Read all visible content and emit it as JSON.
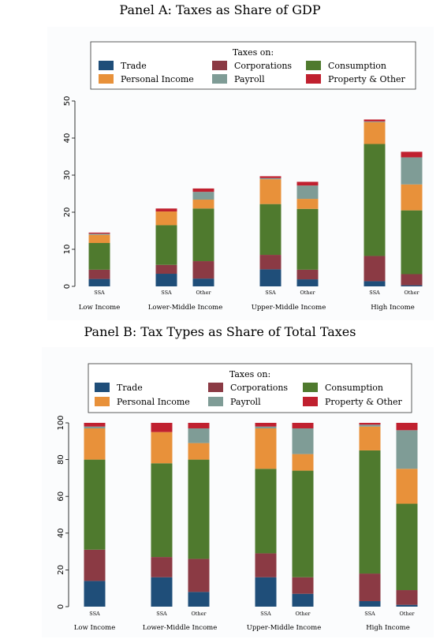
{
  "colors": {
    "Trade": "#1f4e79",
    "Corporations": "#8b3a44",
    "Consumption": "#4f7a2e",
    "Personal Income": "#e8913a",
    "Payroll": "#7f9c96",
    "Property & Other": "#c0202f"
  },
  "chart_data": [
    {
      "type": "bar",
      "stacked": true,
      "title": "Panel A: Taxes as Share of GDP",
      "legend": {
        "title": "Taxes on:",
        "placement": "top"
      },
      "ylim": [
        0,
        53
      ],
      "yticks": [
        0,
        10,
        20,
        30,
        40,
        50
      ],
      "groups": [
        "Low Income",
        "Lower-Middle Income",
        "Upper-Middle Income",
        "High Income"
      ],
      "bars": [
        {
          "group": "Low Income",
          "label": "SSA",
          "values": {
            "Trade": 2.0,
            "Corporations": 2.5,
            "Consumption": 7.2,
            "Personal Income": 2.2,
            "Payroll": 0.3,
            "Property & Other": 0.3
          }
        },
        {
          "group": "Lower-Middle Income",
          "label": "SSA",
          "values": {
            "Trade": 3.4,
            "Corporations": 2.4,
            "Consumption": 10.7,
            "Personal Income": 3.7,
            "Payroll": 0.0,
            "Property & Other": 0.8
          }
        },
        {
          "group": "Lower-Middle Income",
          "label": "Other",
          "values": {
            "Trade": 2.1,
            "Corporations": 4.7,
            "Consumption": 14.2,
            "Personal Income": 2.4,
            "Payroll": 2.1,
            "Property & Other": 0.9
          }
        },
        {
          "group": "Upper-Middle Income",
          "label": "SSA",
          "values": {
            "Trade": 4.6,
            "Corporations": 3.9,
            "Consumption": 13.7,
            "Personal Income": 6.7,
            "Payroll": 0.3,
            "Property & Other": 0.5
          }
        },
        {
          "group": "Upper-Middle Income",
          "label": "Other",
          "values": {
            "Trade": 1.9,
            "Corporations": 2.6,
            "Consumption": 16.4,
            "Personal Income": 2.7,
            "Payroll": 3.6,
            "Property & Other": 1.0
          }
        },
        {
          "group": "High Income",
          "label": "SSA",
          "values": {
            "Trade": 1.4,
            "Corporations": 6.8,
            "Consumption": 30.2,
            "Personal Income": 5.9,
            "Payroll": 0.2,
            "Property & Other": 0.5
          }
        },
        {
          "group": "High Income",
          "label": "Other",
          "values": {
            "Trade": 0.3,
            "Corporations": 3.0,
            "Consumption": 17.2,
            "Personal Income": 7.0,
            "Payroll": 7.3,
            "Property & Other": 1.5
          }
        }
      ],
      "categories_order": [
        "Trade",
        "Corporations",
        "Consumption",
        "Personal Income",
        "Payroll",
        "Property & Other"
      ]
    },
    {
      "type": "bar",
      "stacked": true,
      "title": "Panel B: Tax Types as Share of Total Taxes",
      "legend": {
        "title": "Taxes on:",
        "placement": "top"
      },
      "ylim": [
        0,
        104
      ],
      "yticks": [
        0,
        20,
        40,
        60,
        80,
        100
      ],
      "groups": [
        "Low Income",
        "Lower-Middle Income",
        "Upper-Middle Income",
        "High Income"
      ],
      "bars": [
        {
          "group": "Low Income",
          "label": "SSA",
          "values": {
            "Trade": 14,
            "Corporations": 17,
            "Consumption": 49,
            "Personal Income": 17,
            "Payroll": 1,
            "Property & Other": 2
          }
        },
        {
          "group": "Lower-Middle Income",
          "label": "SSA",
          "values": {
            "Trade": 16,
            "Corporations": 11,
            "Consumption": 51,
            "Personal Income": 17,
            "Payroll": 0,
            "Property & Other": 5
          }
        },
        {
          "group": "Lower-Middle Income",
          "label": "Other",
          "values": {
            "Trade": 8,
            "Corporations": 18,
            "Consumption": 54,
            "Personal Income": 9,
            "Payroll": 8,
            "Property & Other": 3
          }
        },
        {
          "group": "Upper-Middle Income",
          "label": "SSA",
          "values": {
            "Trade": 16,
            "Corporations": 13,
            "Consumption": 46,
            "Personal Income": 22,
            "Payroll": 1,
            "Property & Other": 2
          }
        },
        {
          "group": "Upper-Middle Income",
          "label": "Other",
          "values": {
            "Trade": 7,
            "Corporations": 9,
            "Consumption": 58,
            "Personal Income": 9,
            "Payroll": 14,
            "Property & Other": 3
          }
        },
        {
          "group": "High Income",
          "label": "SSA",
          "values": {
            "Trade": 3,
            "Corporations": 15,
            "Consumption": 67,
            "Personal Income": 13,
            "Payroll": 1,
            "Property & Other": 1
          }
        },
        {
          "group": "High Income",
          "label": "Other",
          "values": {
            "Trade": 1,
            "Corporations": 8,
            "Consumption": 47,
            "Personal Income": 19,
            "Payroll": 21,
            "Property & Other": 4
          }
        }
      ],
      "categories_order": [
        "Trade",
        "Corporations",
        "Consumption",
        "Personal Income",
        "Payroll",
        "Property & Other"
      ]
    }
  ]
}
